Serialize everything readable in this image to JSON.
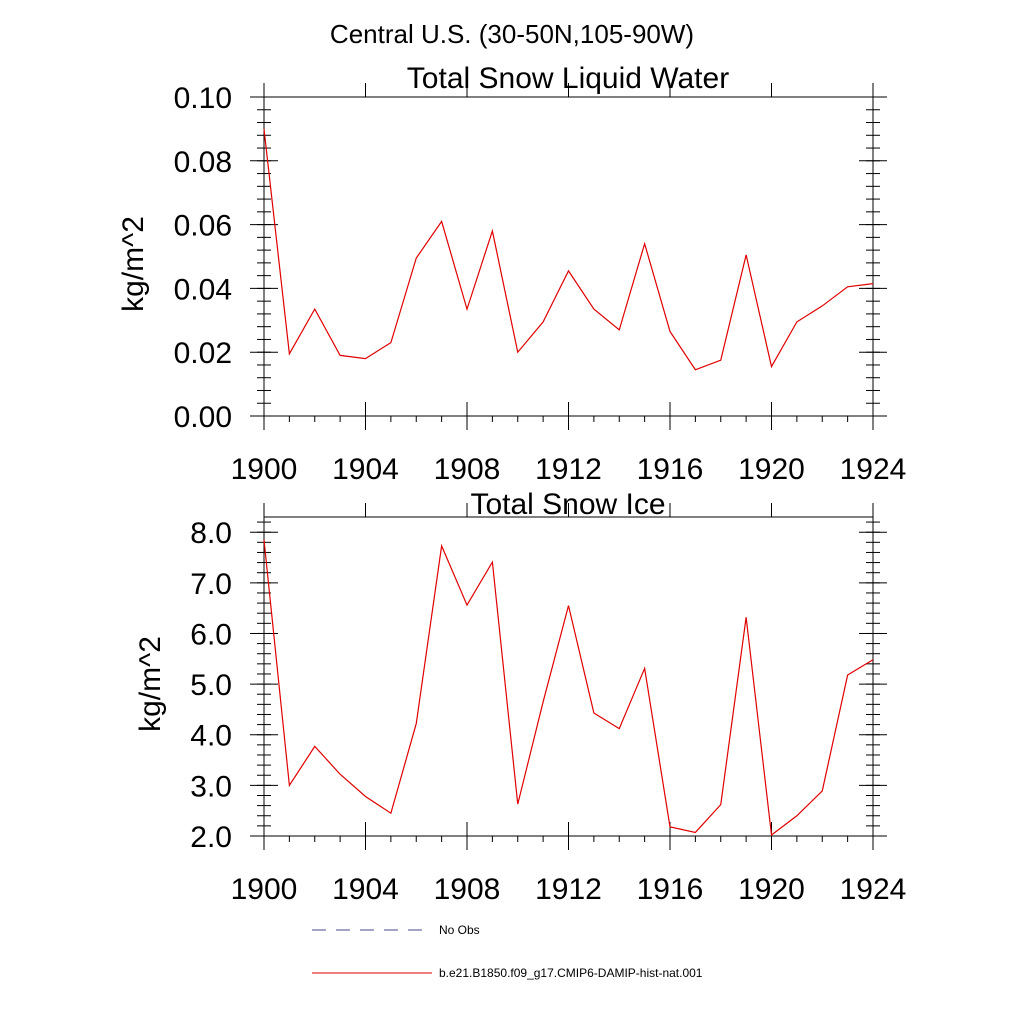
{
  "figure": {
    "suptitle": "Central U.S. (30-50N,105-90W)"
  },
  "legend": {
    "entries": [
      {
        "label": "No Obs",
        "style": "dashed",
        "color": "#4a4a8c"
      },
      {
        "label": "b.e21.B1850.f09_g17.CMIP6-DAMIP-hist-nat.001",
        "style": "solid",
        "color": "#e00000"
      }
    ]
  },
  "chart_data": [
    {
      "type": "line",
      "title": "Total Snow Liquid Water",
      "xlabel": "",
      "ylabel": "kg/m^2",
      "xlim": [
        1900,
        1924
      ],
      "ylim": [
        0,
        0.1
      ],
      "xticks": [
        1900,
        1904,
        1908,
        1912,
        1916,
        1920,
        1924
      ],
      "xtick_labels": [
        "1900",
        "1904",
        "1908",
        "1912",
        "1916",
        "1920",
        "1924"
      ],
      "yticks": [
        0,
        0.02,
        0.04,
        0.06,
        0.08,
        0.1
      ],
      "ytick_labels": [
        "0.00",
        "0.02",
        "0.04",
        "0.06",
        "0.08",
        "0.10"
      ],
      "grid": false,
      "x": [
        1900,
        1901,
        1902,
        1903,
        1904,
        1905,
        1906,
        1907,
        1908,
        1909,
        1910,
        1911,
        1912,
        1913,
        1914,
        1915,
        1916,
        1917,
        1918,
        1919,
        1920,
        1921,
        1922,
        1923,
        1924
      ],
      "series": [
        {
          "name": "b.e21.B1850.f09_g17.CMIP6-DAMIP-hist-nat.001",
          "color": "#e00000",
          "values": [
            0.09,
            0.0195,
            0.0335,
            0.019,
            0.018,
            0.023,
            0.0495,
            0.061,
            0.0335,
            0.058,
            0.02,
            0.0295,
            0.0455,
            0.0335,
            0.027,
            0.054,
            0.0265,
            0.0145,
            0.0175,
            0.0505,
            0.0155,
            0.0295,
            0.0345,
            0.0405,
            0.0415
          ]
        }
      ]
    },
    {
      "type": "line",
      "title": "Total Snow Ice",
      "xlabel": "",
      "ylabel": "kg/m^2",
      "xlim": [
        1900,
        1924
      ],
      "ylim": [
        2.0,
        8.3
      ],
      "xticks": [
        1900,
        1904,
        1908,
        1912,
        1916,
        1920,
        1924
      ],
      "xtick_labels": [
        "1900",
        "1904",
        "1908",
        "1912",
        "1916",
        "1920",
        "1924"
      ],
      "yticks": [
        2,
        3,
        4,
        5,
        6,
        7,
        8
      ],
      "ytick_labels": [
        "2.0",
        "3.0",
        "4.0",
        "5.0",
        "6.0",
        "7.0",
        "8.0"
      ],
      "grid": false,
      "x": [
        1900,
        1901,
        1902,
        1903,
        1904,
        1905,
        1906,
        1907,
        1908,
        1909,
        1910,
        1911,
        1912,
        1913,
        1914,
        1915,
        1916,
        1917,
        1918,
        1919,
        1920,
        1921,
        1922,
        1923,
        1924
      ],
      "series": [
        {
          "name": "b.e21.B1850.f09_g17.CMIP6-DAMIP-hist-nat.001",
          "color": "#e00000",
          "values": [
            7.85,
            3.0,
            3.77,
            3.22,
            2.78,
            2.45,
            4.22,
            7.73,
            6.56,
            7.41,
            2.63,
            4.65,
            6.55,
            4.43,
            4.12,
            5.31,
            2.18,
            2.07,
            2.62,
            6.32,
            2.02,
            2.4,
            2.89,
            5.18,
            5.48
          ]
        }
      ]
    }
  ]
}
